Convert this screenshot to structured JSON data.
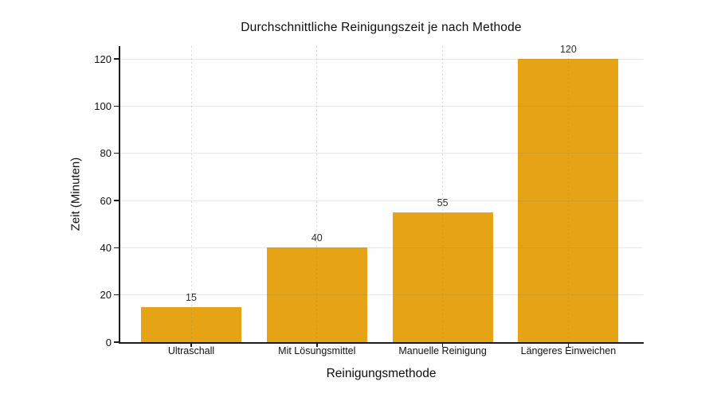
{
  "chart_data": {
    "type": "bar",
    "title": "Durchschnittliche Reinigungszeit je nach Methode",
    "xlabel": "Reinigungsmethode",
    "ylabel": "Zeit (Minuten)",
    "categories": [
      "Ultraschall",
      "Mit Lösungsmittel",
      "Manuelle Reinigung",
      "Längeres Einweichen"
    ],
    "values": [
      15,
      40,
      55,
      120
    ],
    "bar_labels": [
      "15",
      "40",
      "55",
      "120"
    ],
    "yticks": [
      0,
      20,
      40,
      60,
      80,
      100,
      120
    ],
    "ytick_labels": [
      "0",
      "20",
      "40",
      "60",
      "80",
      "100",
      "120"
    ],
    "ylim": [
      0,
      125.4
    ],
    "bar_color": "#E5A315",
    "grid": {
      "horizontal": "solid light gray at each ytick",
      "vertical": "dashed light gray at each category center"
    },
    "legend": "none"
  }
}
